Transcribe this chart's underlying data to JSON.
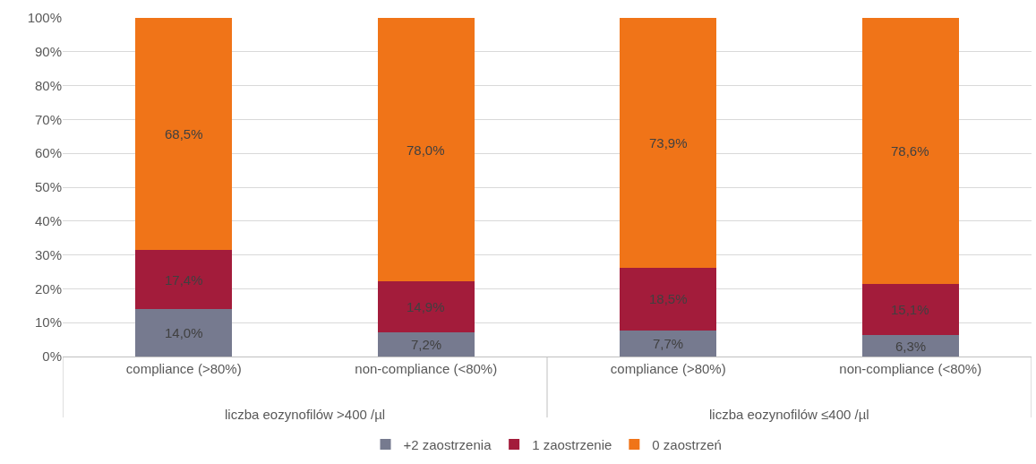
{
  "chart_data": {
    "type": "bar",
    "stacked": true,
    "categories": [
      "compliance (>80%)",
      "non-compliance (<80%)",
      "compliance (>80%)",
      "non-compliance (<80%)"
    ],
    "series": [
      {
        "name": "+2 zaostrzenia",
        "color": "#767a8f",
        "values": [
          14.0,
          7.2,
          7.7,
          6.3
        ],
        "value_labels": [
          "14,0%",
          "7,2%",
          "7,7%",
          "6,3%"
        ]
      },
      {
        "name": "1 zaostrzenie",
        "color": "#a31c3b",
        "values": [
          17.4,
          14.9,
          18.5,
          15.1
        ],
        "value_labels": [
          "17,4%",
          "14,9%",
          "18,5%",
          "15,1%"
        ]
      },
      {
        "name": "0 zaostrzeń",
        "color": "#f07418",
        "values": [
          68.5,
          78.0,
          73.9,
          78.6
        ],
        "value_labels": [
          "68,5%",
          "78,0%",
          "73,9%",
          "78,6%"
        ]
      }
    ],
    "ylim": [
      0,
      100
    ],
    "yticks": [
      {
        "value": 0,
        "label": "0%"
      },
      {
        "value": 10,
        "label": "10%"
      },
      {
        "value": 20,
        "label": "20%"
      },
      {
        "value": 30,
        "label": "30%"
      },
      {
        "value": 40,
        "label": "40%"
      },
      {
        "value": 50,
        "label": "50%"
      },
      {
        "value": 60,
        "label": "60%"
      },
      {
        "value": 70,
        "label": "70%"
      },
      {
        "value": 80,
        "label": "80%"
      },
      {
        "value": 90,
        "label": "90%"
      },
      {
        "value": 100,
        "label": "100%"
      }
    ],
    "annotations": [
      "liczba eozynofilów >400 /µl",
      "liczba eozynofilów ≤400 /µl"
    ],
    "grid": "y",
    "legend": "bottom"
  }
}
